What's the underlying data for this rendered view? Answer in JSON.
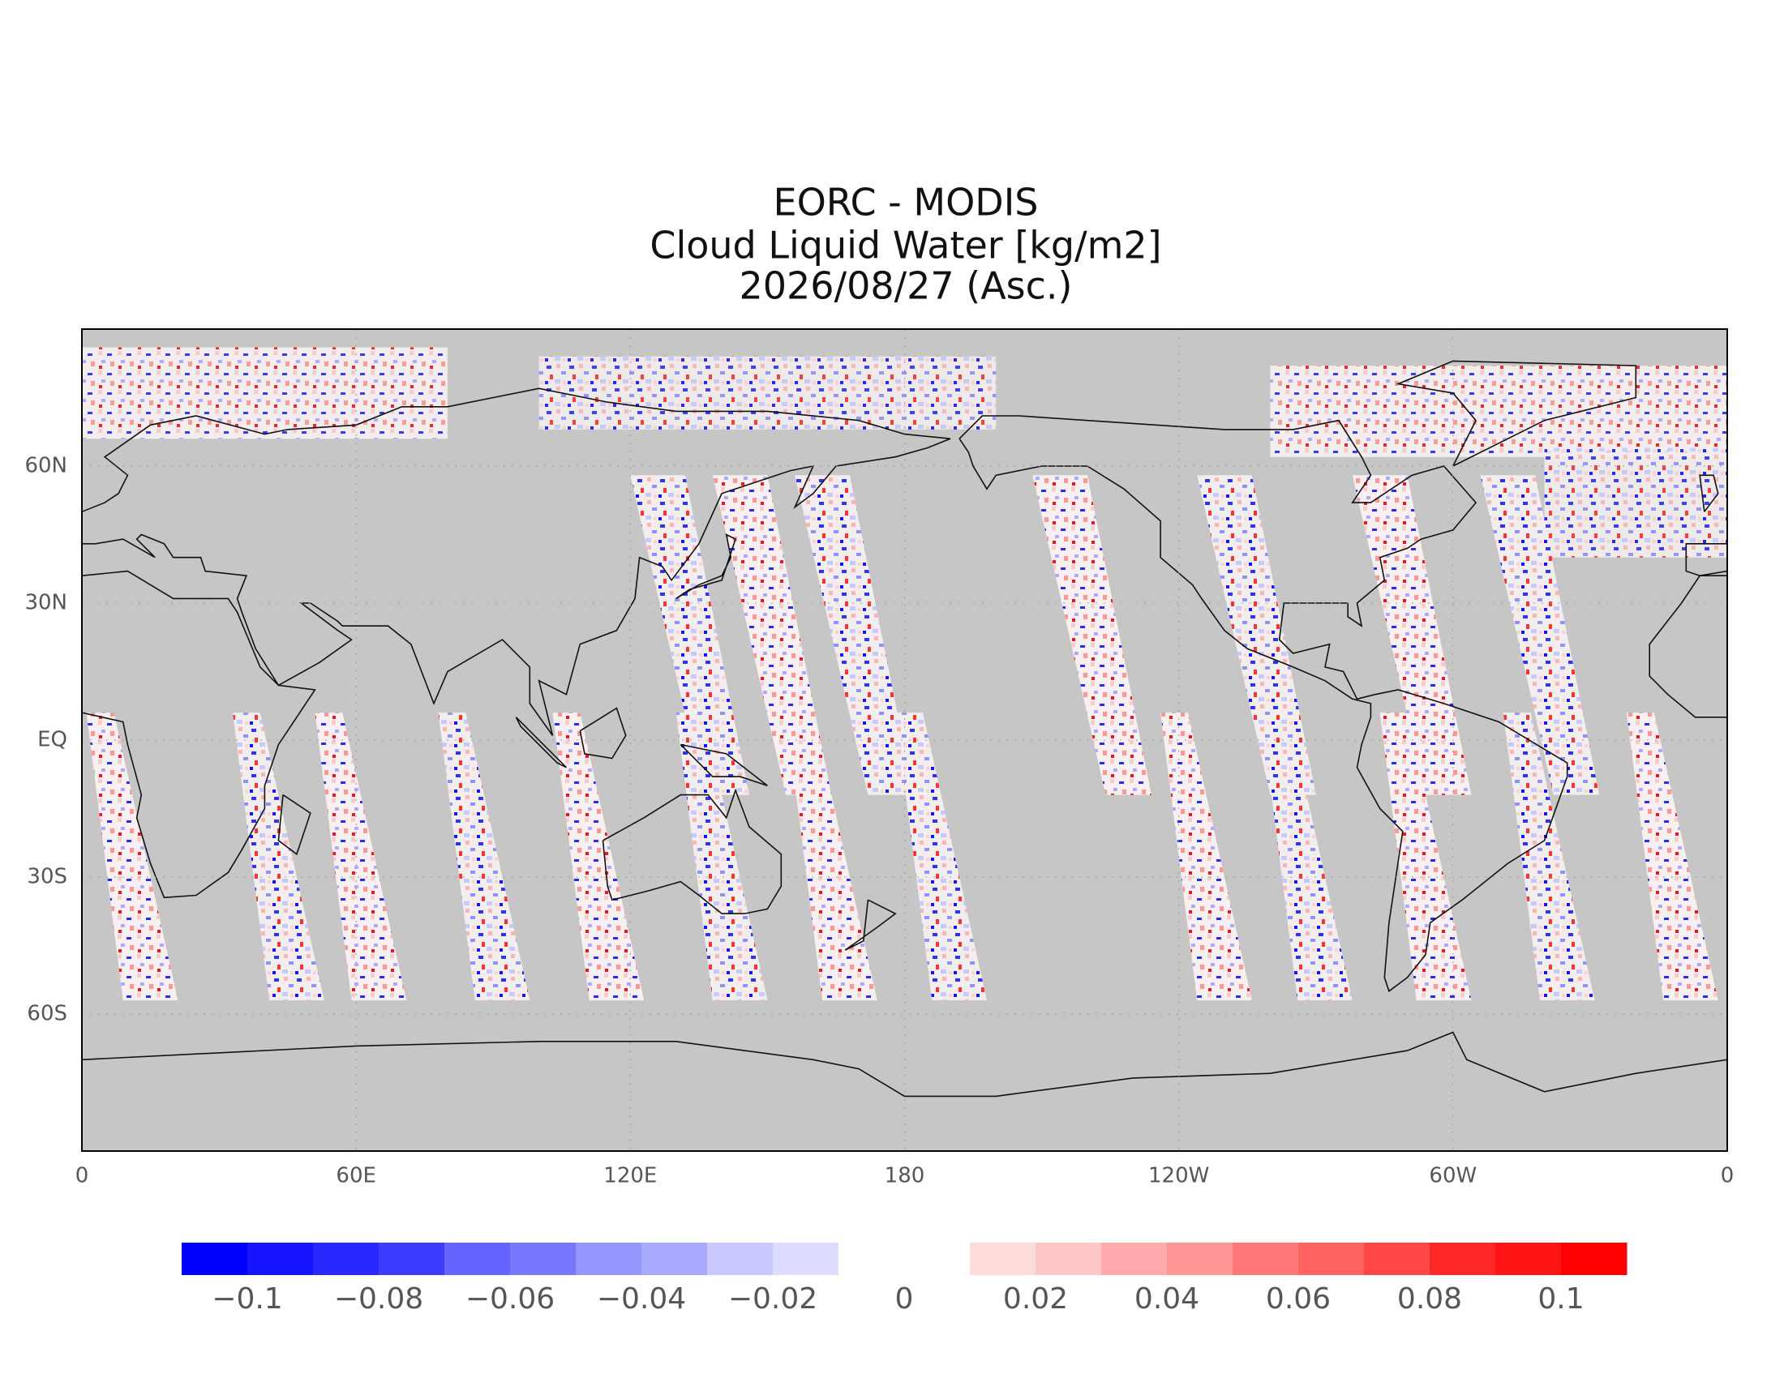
{
  "chart_data": {
    "type": "map",
    "title": [
      "EORC - MODIS",
      "Cloud Liquid Water [kg/m2]",
      "2026/08/27 (Asc.)"
    ],
    "xlim": [
      0,
      360
    ],
    "xticks": [
      0,
      {
        "value": 60,
        "label": "60E"
      },
      {
        "value": 120,
        "label": "120E"
      },
      180,
      {
        "value": 240,
        "label": "120W"
      },
      {
        "value": 300,
        "label": "60W"
      },
      {
        "value": 360,
        "label": "0"
      }
    ],
    "ylim": [
      -90,
      90
    ],
    "yticks": [
      {
        "value": -60,
        "label": "60S"
      },
      {
        "value": -30,
        "label": "30S"
      },
      {
        "value": 0,
        "label": "EQ"
      },
      {
        "value": 30,
        "label": "30N"
      },
      {
        "value": 60,
        "label": "60N"
      }
    ],
    "grid": true,
    "background": "#c6c6c6",
    "colorbar": {
      "clim": [
        -0.11,
        0.11
      ],
      "colors": [
        "#0000ff",
        "#1414ff",
        "#2828ff",
        "#3c3cff",
        "#6464ff",
        "#7878ff",
        "#9696ff",
        "#aaaaff",
        "#c8c8ff",
        "#dcdcff",
        "#ffffff",
        "#ffffff",
        "#ffdcdc",
        "#ffc8c8",
        "#ffaaaa",
        "#ff9696",
        "#ff7878",
        "#ff6464",
        "#ff4646",
        "#ff2828",
        "#ff1414",
        "#ff0000"
      ],
      "ticks": [
        {
          "value": -0.1,
          "label": "−0.1"
        },
        {
          "value": -0.08,
          "label": "−0.08"
        },
        {
          "value": -0.06,
          "label": "−0.06"
        },
        {
          "value": -0.04,
          "label": "−0.04"
        },
        {
          "value": -0.02,
          "label": "−0.02"
        },
        0,
        0.02,
        0.04,
        0.06,
        0.08,
        0.1
      ]
    }
  }
}
